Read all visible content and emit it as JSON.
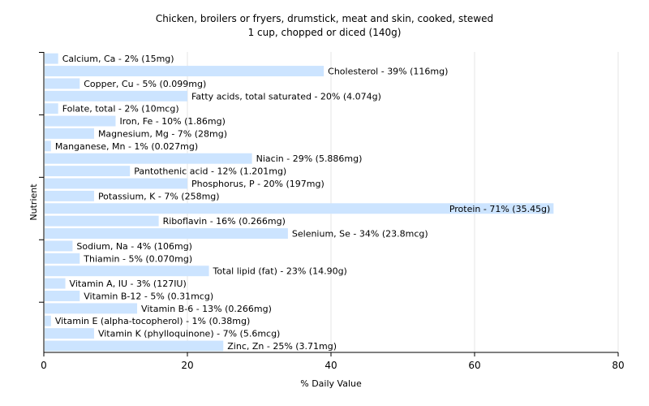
{
  "chart_data": {
    "type": "bar",
    "orientation": "horizontal",
    "title": "Chicken, broilers or fryers, drumstick, meat and skin, cooked, stewed",
    "subtitle": "1 cup, chopped or diced (140g)",
    "xlabel": "% Daily Value",
    "ylabel": "Nutrient",
    "xlim": [
      0,
      80
    ],
    "xticks": [
      0,
      20,
      40,
      60,
      80
    ],
    "grid": true,
    "bar_color": "#cce4ff",
    "categories": [
      "Calcium, Ca",
      "Cholesterol",
      "Copper, Cu",
      "Fatty acids, total saturated",
      "Folate, total",
      "Iron, Fe",
      "Magnesium, Mg",
      "Manganese, Mn",
      "Niacin",
      "Pantothenic acid",
      "Phosphorus, P",
      "Potassium, K",
      "Protein",
      "Riboflavin",
      "Selenium, Se",
      "Sodium, Na",
      "Thiamin",
      "Total lipid (fat)",
      "Vitamin A, IU",
      "Vitamin B-12",
      "Vitamin B-6",
      "Vitamin E (alpha-tocopherol)",
      "Vitamin K (phylloquinone)",
      "Zinc, Zn"
    ],
    "values": [
      2,
      39,
      5,
      20,
      2,
      10,
      7,
      1,
      29,
      12,
      20,
      7,
      71,
      16,
      34,
      4,
      5,
      23,
      3,
      5,
      13,
      1,
      7,
      25
    ],
    "data_labels": [
      "Calcium, Ca - 2% (15mg)",
      "Cholesterol - 39% (116mg)",
      "Copper, Cu - 5% (0.099mg)",
      "Fatty acids, total saturated - 20% (4.074g)",
      "Folate, total - 2% (10mcg)",
      "Iron, Fe - 10% (1.86mg)",
      "Magnesium, Mg - 7% (28mg)",
      "Manganese, Mn - 1% (0.027mg)",
      "Niacin - 29% (5.886mg)",
      "Pantothenic acid - 12% (1.201mg)",
      "Phosphorus, P - 20% (197mg)",
      "Potassium, K - 7% (258mg)",
      "Protein - 71% (35.45g)",
      "Riboflavin - 16% (0.266mg)",
      "Selenium, Se - 34% (23.8mcg)",
      "Sodium, Na - 4% (106mg)",
      "Thiamin - 5% (0.070mg)",
      "Total lipid (fat) - 23% (14.90g)",
      "Vitamin A, IU - 3% (127IU)",
      "Vitamin B-12 - 5% (0.31mcg)",
      "Vitamin B-6 - 13% (0.266mg)",
      "Vitamin E (alpha-tocopherol) - 1% (0.38mg)",
      "Vitamin K (phylloquinone) - 7% (5.6mcg)",
      "Zinc, Zn - 25% (3.71mg)"
    ]
  }
}
